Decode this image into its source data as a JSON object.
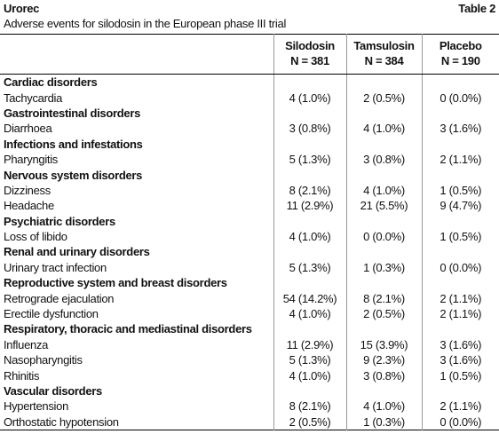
{
  "header": {
    "title": "Urorec",
    "table_label": "Table 2",
    "subtitle": "Adverse events for silodosin in the European phase III trial"
  },
  "table": {
    "columns": [
      {
        "name": "Silodosin",
        "n": "N = 381"
      },
      {
        "name": "Tamsulosin",
        "n": "N = 384"
      },
      {
        "name": "Placebo",
        "n": "N = 190"
      }
    ],
    "groups": [
      {
        "name": "Cardiac disorders",
        "rows": [
          {
            "label": "Tachycardia",
            "values": [
              "4 (1.0%)",
              "2 (0.5%)",
              "0 (0.0%)"
            ]
          }
        ]
      },
      {
        "name": "Gastrointestinal disorders",
        "rows": [
          {
            "label": "Diarrhoea",
            "values": [
              "3 (0.8%)",
              "4 (1.0%)",
              "3 (1.6%)"
            ]
          }
        ]
      },
      {
        "name": "Infections and infestations",
        "rows": [
          {
            "label": "Pharyngitis",
            "values": [
              "5 (1.3%)",
              "3 (0.8%)",
              "2 (1.1%)"
            ]
          }
        ]
      },
      {
        "name": "Nervous system disorders",
        "rows": [
          {
            "label": "Dizziness",
            "values": [
              "8 (2.1%)",
              "4 (1.0%)",
              "1 (0.5%)"
            ]
          },
          {
            "label": "Headache",
            "values": [
              "11 (2.9%)",
              "21 (5.5%)",
              "9 (4.7%)"
            ]
          }
        ]
      },
      {
        "name": "Psychiatric disorders",
        "rows": [
          {
            "label": "Loss of libido",
            "values": [
              "4 (1.0%)",
              "0 (0.0%)",
              "1 (0.5%)"
            ]
          }
        ]
      },
      {
        "name": "Renal and urinary disorders",
        "rows": [
          {
            "label": "Urinary tract infection",
            "values": [
              "5 (1.3%)",
              "1 (0.3%)",
              "0 (0.0%)"
            ]
          }
        ]
      },
      {
        "name": "Reproductive system and breast disorders",
        "rows": [
          {
            "label": "Retrograde ejaculation",
            "values": [
              "54 (14.2%)",
              "8 (2.1%)",
              "2 (1.1%)"
            ]
          },
          {
            "label": "Erectile dysfunction",
            "values": [
              "4 (1.0%)",
              "2 (0.5%)",
              "2 (1.1%)"
            ]
          }
        ]
      },
      {
        "name": "Respiratory, thoracic and mediastinal disorders",
        "rows": [
          {
            "label": "Influenza",
            "values": [
              "11 (2.9%)",
              "15 (3.9%)",
              "3 (1.6%)"
            ]
          },
          {
            "label": "Nasopharyngitis",
            "values": [
              "5 (1.3%)",
              "9 (2.3%)",
              "3 (1.6%)"
            ]
          },
          {
            "label": "Rhinitis",
            "values": [
              "4 (1.0%)",
              "3 (0.8%)",
              "1 (0.5%)"
            ]
          }
        ]
      },
      {
        "name": "Vascular disorders",
        "rows": [
          {
            "label": "Hypertension",
            "values": [
              "8 (2.1%)",
              "4 (1.0%)",
              "2 (1.1%)"
            ]
          },
          {
            "label": "Orthostatic hypotension",
            "values": [
              "2 (0.5%)",
              "1 (0.3%)",
              "0 (0.0%)"
            ]
          }
        ]
      }
    ]
  }
}
